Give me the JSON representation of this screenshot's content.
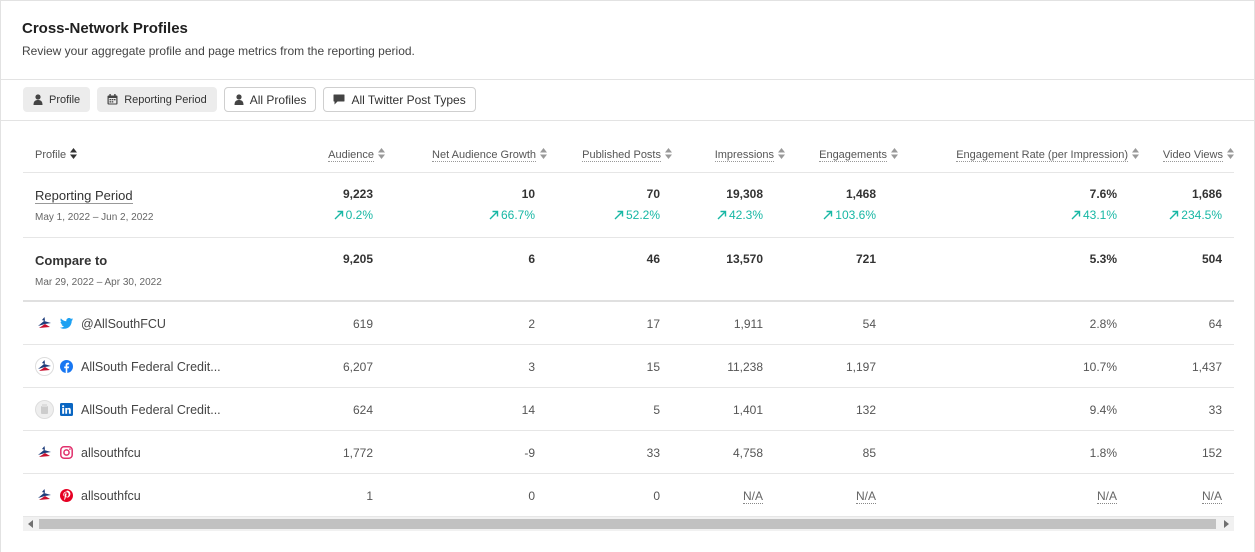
{
  "header": {
    "title": "Cross-Network Profiles",
    "subtitle": "Review your aggregate profile and page metrics from the reporting period."
  },
  "filters": [
    {
      "label": "Profile",
      "icon": "user-icon"
    },
    {
      "label": "Reporting Period",
      "icon": "calendar-icon"
    },
    {
      "label": "All Profiles",
      "icon": "user-icon"
    },
    {
      "label": "All Twitter Post Types",
      "icon": "comment-icon"
    }
  ],
  "columns": [
    "Profile",
    "Audience",
    "Net Audience Growth",
    "Published Posts",
    "Impressions",
    "Engagements",
    "Engagement Rate (per Impression)",
    "Video Views"
  ],
  "summary": {
    "reporting": {
      "label": "Reporting Period",
      "dates": "May 1, 2022 – Jun 2, 2022",
      "values": [
        "9,223",
        "10",
        "70",
        "19,308",
        "1,468",
        "7.6%",
        "1,686"
      ],
      "deltas": [
        "0.2%",
        "66.7%",
        "52.2%",
        "42.3%",
        "103.6%",
        "43.1%",
        "234.5%"
      ]
    },
    "compare": {
      "label": "Compare to",
      "dates": "Mar 29, 2022 – Apr 30, 2022",
      "values": [
        "9,205",
        "6",
        "46",
        "13,570",
        "721",
        "5.3%",
        "504"
      ]
    }
  },
  "profiles": [
    {
      "name": "@AllSouthFCU",
      "network": "twitter-icon",
      "values": [
        "619",
        "2",
        "17",
        "1,911",
        "54",
        "2.8%",
        "64"
      ]
    },
    {
      "name": "AllSouth Federal Credit...",
      "network": "facebook-icon",
      "values": [
        "6,207",
        "3",
        "15",
        "11,238",
        "1,197",
        "10.7%",
        "1,437"
      ]
    },
    {
      "name": "AllSouth Federal Credit...",
      "network": "linkedin-icon",
      "values": [
        "624",
        "14",
        "5",
        "1,401",
        "132",
        "9.4%",
        "33"
      ]
    },
    {
      "name": "allsouthfcu",
      "network": "instagram-icon",
      "values": [
        "1,772",
        "-9",
        "33",
        "4,758",
        "85",
        "1.8%",
        "152"
      ]
    },
    {
      "name": "allsouthfcu",
      "network": "pinterest-icon",
      "values": [
        "1",
        "0",
        "0",
        "N/A",
        "N/A",
        "N/A",
        "N/A"
      ]
    }
  ],
  "colors": {
    "positive": "#17b7a4",
    "twitter": "#1da1f2",
    "facebook": "#1877f2",
    "linkedin": "#0a66c2",
    "instagram": "#e1306c",
    "pinterest": "#e60023"
  }
}
